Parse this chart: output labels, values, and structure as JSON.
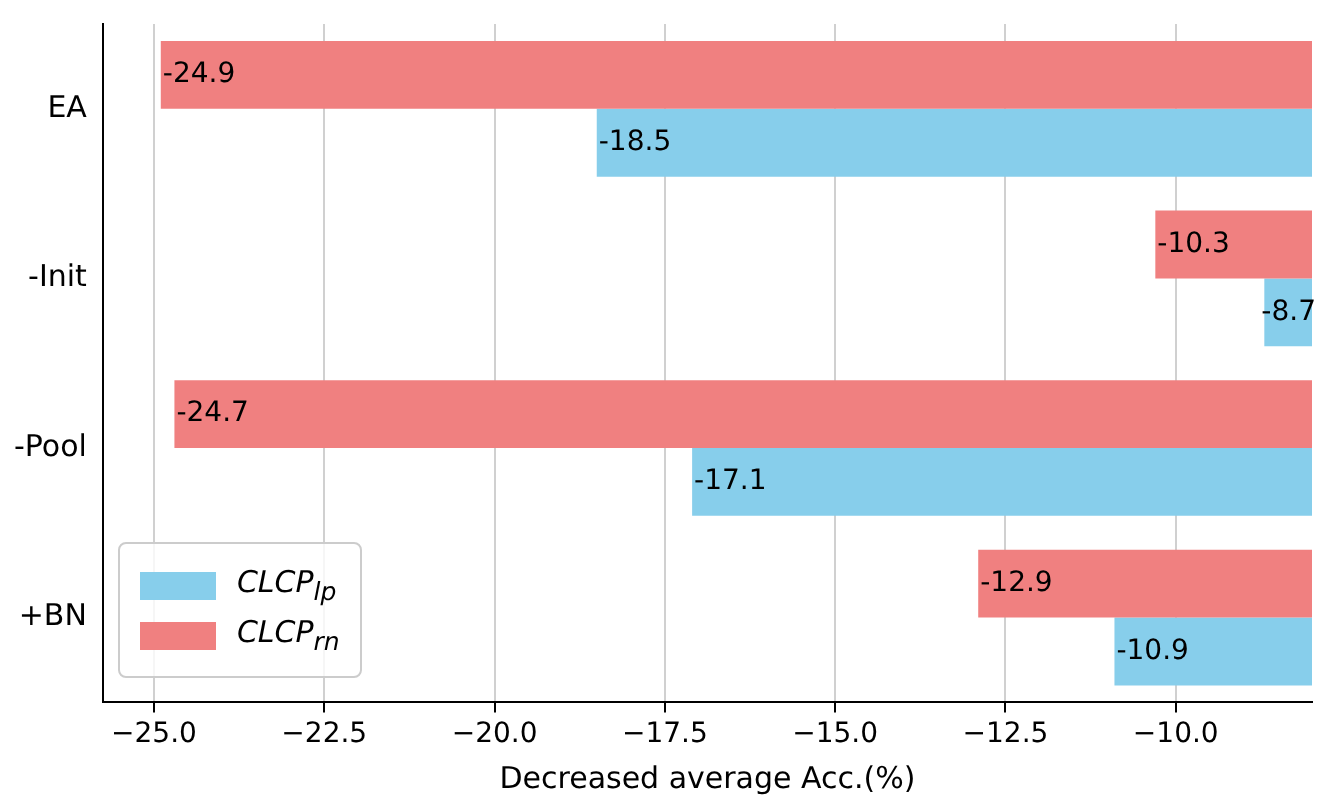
{
  "chart_data": {
    "type": "bar",
    "orientation": "horizontal",
    "xlabel": "Decreased average Acc.(%)",
    "categories": [
      "EA",
      "-Init",
      "-Pool",
      "+BN"
    ],
    "series": [
      {
        "name": "CLCP$_{lp}$",
        "color": "#87ceeb",
        "values": [
          -18.5,
          -8.7,
          -17.1,
          -10.9
        ]
      },
      {
        "name": "CLCP$_{rn}$",
        "color": "#f08080",
        "values": [
          -24.9,
          -10.3,
          -24.7,
          -12.9
        ]
      }
    ],
    "xlim": [
      -25.75,
      -8.0
    ],
    "xticks": [
      {
        "value": -25,
        "label": "−25.0"
      },
      {
        "value": -22.5,
        "label": "−22.5"
      },
      {
        "value": -20,
        "label": "−20.0"
      },
      {
        "value": -17.5,
        "label": "−17.5"
      },
      {
        "value": -15,
        "label": "−15.0"
      },
      {
        "value": -12.5,
        "label": "−12.5"
      },
      {
        "value": -10,
        "label": "−10.0"
      }
    ],
    "grid": "x",
    "legend": "bottom left",
    "data_labels": true
  }
}
